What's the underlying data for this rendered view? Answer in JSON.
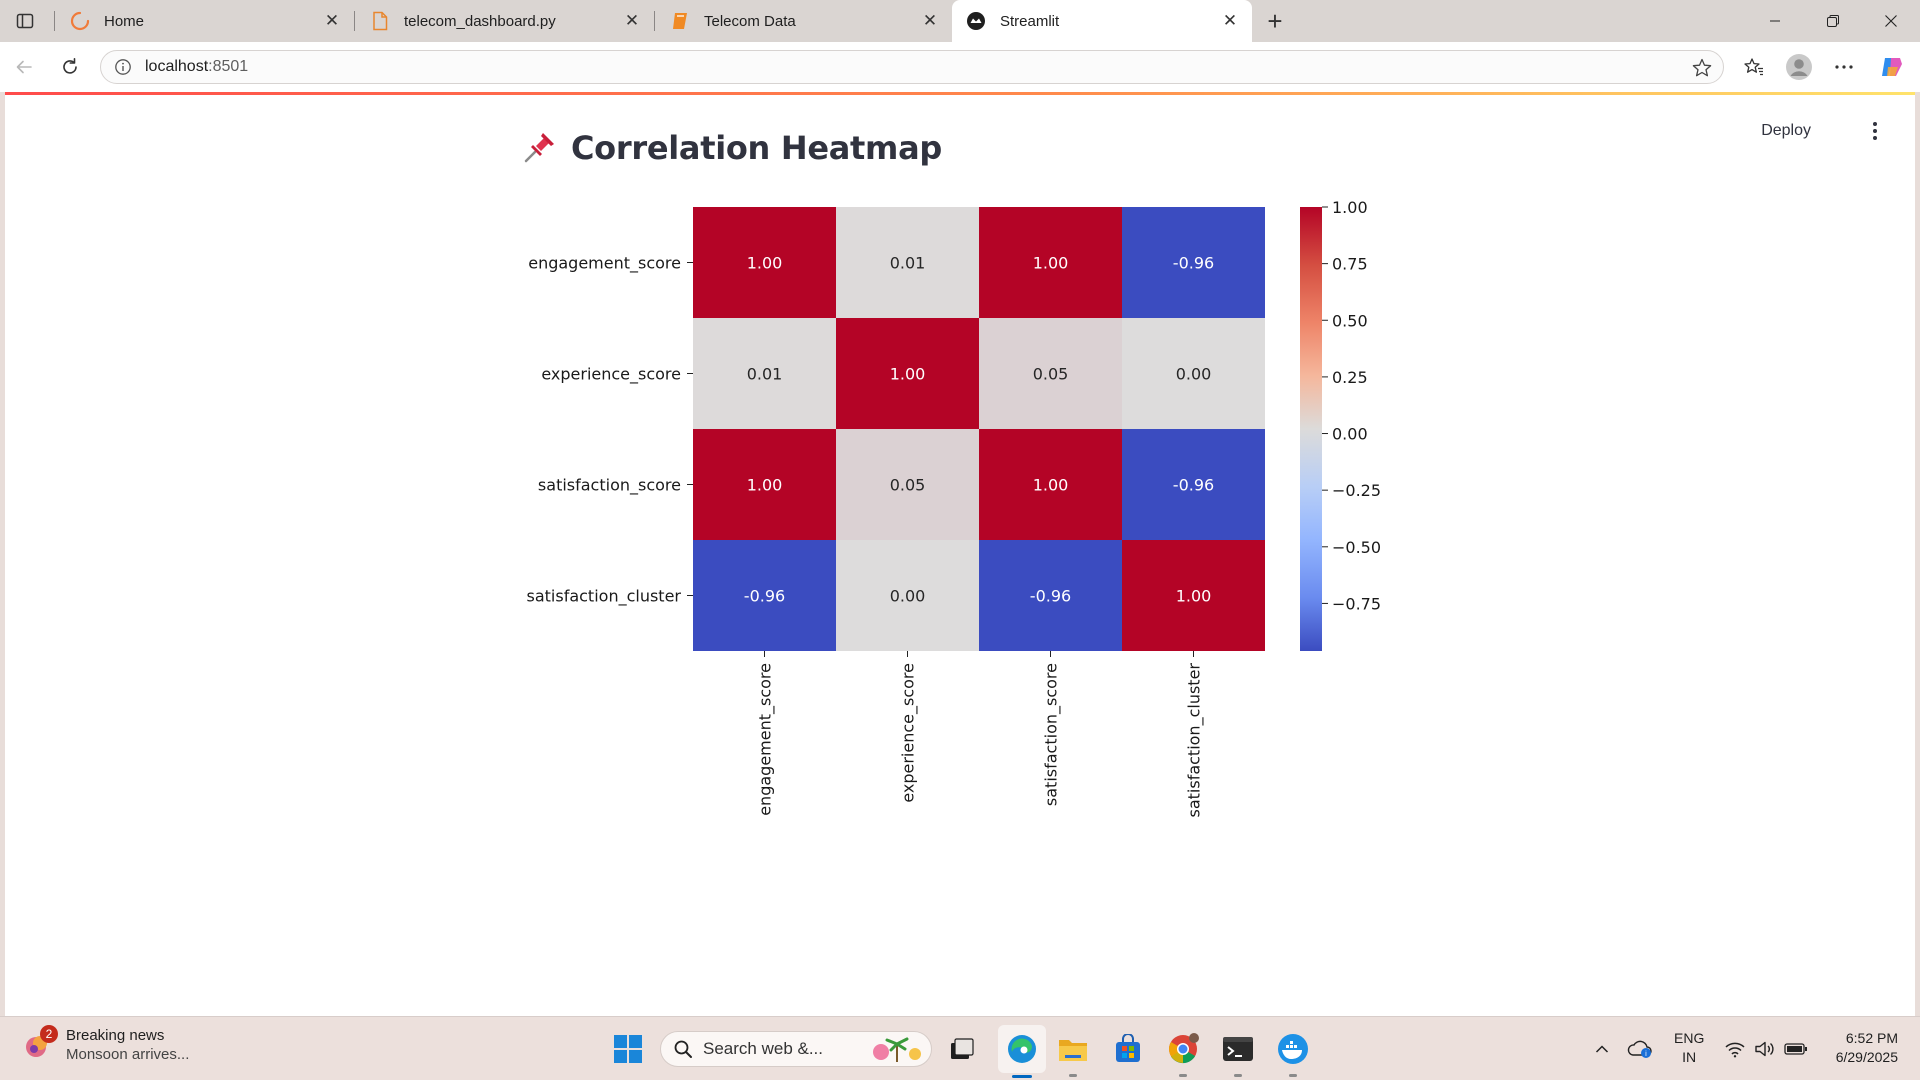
{
  "browser": {
    "tabs": [
      {
        "title": "Home",
        "icon": "edge-loading-icon",
        "active": false
      },
      {
        "title": "telecom_dashboard.py",
        "icon": "file-icon",
        "active": false
      },
      {
        "title": "Telecom Data",
        "icon": "book-icon",
        "active": false
      },
      {
        "title": "Streamlit",
        "icon": "streamlit-icon",
        "active": true
      }
    ],
    "address": {
      "host": "localhost",
      "port": ":8501"
    }
  },
  "app": {
    "deploy_label": "Deploy",
    "heading_icon": "pushpin-icon",
    "title": "Correlation Heatmap"
  },
  "chart_data": {
    "type": "heatmap",
    "title": "",
    "variables": [
      "engagement_score",
      "experience_score",
      "satisfaction_score",
      "satisfaction_cluster"
    ],
    "values": [
      [
        1.0,
        0.01,
        1.0,
        -0.96
      ],
      [
        0.01,
        1.0,
        0.05,
        0.0
      ],
      [
        1.0,
        0.05,
        1.0,
        -0.96
      ],
      [
        -0.96,
        0.0,
        -0.96,
        1.0
      ]
    ],
    "annotations": [
      [
        "1.00",
        "0.01",
        "1.00",
        "-0.96"
      ],
      [
        "0.01",
        "1.00",
        "0.05",
        "0.00"
      ],
      [
        "1.00",
        "0.05",
        "1.00",
        "-0.96"
      ],
      [
        "-0.96",
        "0.00",
        "-0.96",
        "1.00"
      ]
    ],
    "colormap": "coolwarm",
    "colorbar": {
      "range": [
        -0.96,
        1.0
      ],
      "ticks": [
        1.0,
        0.75,
        0.5,
        0.25,
        0.0,
        -0.25,
        -0.5,
        -0.75
      ],
      "tick_labels": [
        "1.00",
        "0.75",
        "0.50",
        "0.25",
        "0.00",
        "−0.25",
        "−0.50",
        "−0.75"
      ]
    },
    "colors": {
      "high": "#b40426",
      "mid": "#dddcdc",
      "low": "#3b4cc0"
    }
  },
  "taskbar": {
    "news": {
      "badge": "2",
      "title": "Breaking news",
      "subtitle": "Monsoon arrives..."
    },
    "search_placeholder": "Search web &...",
    "apps": [
      "windows-start-icon",
      "task-view-icon",
      "edge-icon",
      "file-explorer-icon",
      "store-icon",
      "chrome-icon",
      "terminal-icon",
      "docker-icon"
    ],
    "lang": {
      "line1": "ENG",
      "line2": "IN"
    },
    "clock": {
      "time": "6:52 PM",
      "date": "6/29/2025"
    }
  }
}
